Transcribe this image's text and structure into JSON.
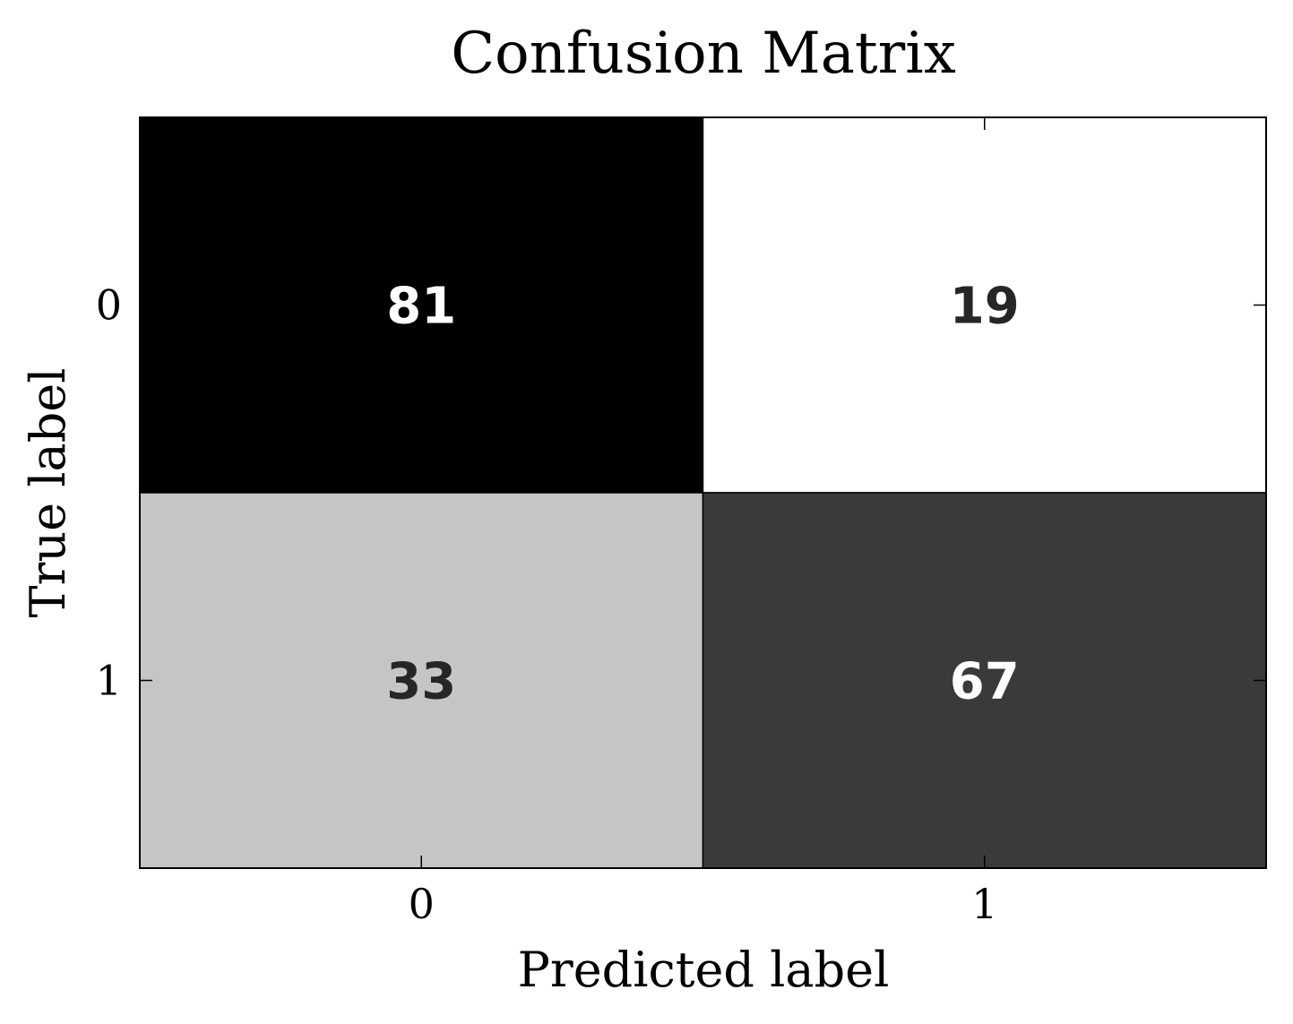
{
  "chart_data": {
    "type": "heatmap",
    "title": "Confusion Matrix",
    "xlabel": "Predicted label",
    "ylabel": "True label",
    "x_categories": [
      "0",
      "1"
    ],
    "y_categories": [
      "0",
      "1"
    ],
    "values": [
      [
        81,
        19
      ],
      [
        33,
        67
      ]
    ],
    "colormap": "greys (high = black, low = white)",
    "colorbar": false,
    "grid": false
  }
}
